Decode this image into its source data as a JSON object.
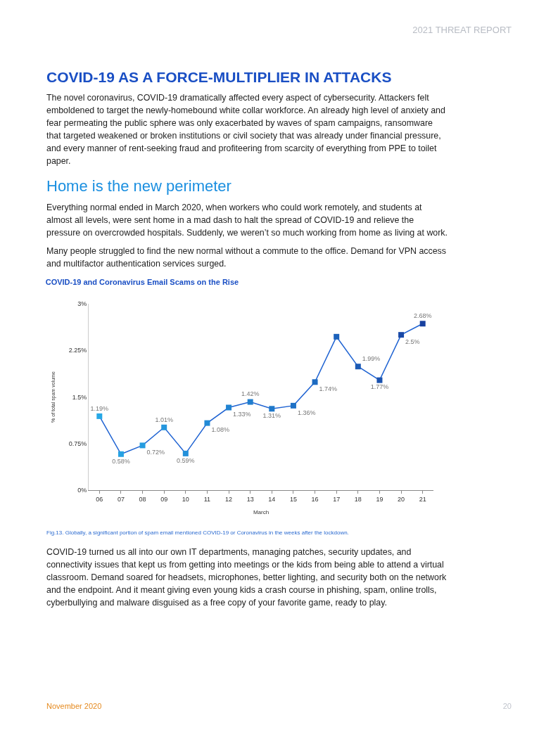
{
  "chart_data": {
    "type": "line",
    "title": "COVID-19 and Coronavirus Email Scams on the Rise",
    "xlabel": "March",
    "ylabel": "% of total spam volume",
    "categories": [
      "06",
      "07",
      "08",
      "09",
      "10",
      "11",
      "12",
      "13",
      "14",
      "15",
      "16",
      "17",
      "18",
      "19",
      "20",
      "21"
    ],
    "series": [
      {
        "color": "#1f63d2",
        "values": [
          1.19,
          0.58,
          0.72,
          1.01,
          0.59,
          1.08,
          1.33,
          1.42,
          1.31,
          1.36,
          1.74,
          2.47,
          1.99,
          1.77,
          2.5,
          2.68
        ],
        "colors": [
          "#27a8e6",
          "#26a2e3",
          "#259ce0",
          "#2496dd",
          "#2390da",
          "#228ad6",
          "#2184d2",
          "#207ece",
          "#1f78ca",
          "#1e71c6",
          "#1d6ac1",
          "#1c62bb",
          "#1b5ab5",
          "#1a52ae",
          "#1949a7",
          "#18409f"
        ],
        "value_labels": [
          "1.19%",
          "0.58%",
          "0.72%",
          "1.01%",
          "0.59%",
          "1.08%",
          "1.33%",
          "1.42%",
          "1.31%",
          "1.36%",
          "1.74%",
          null,
          "1.99%",
          "1.77%",
          "2.5%",
          "2.68%"
        ]
      }
    ],
    "ylim": [
      0,
      3
    ],
    "yticks": [
      {
        "value": 0,
        "label": "0%"
      },
      {
        "value": 0.75,
        "label": "0.75%"
      },
      {
        "value": 1.5,
        "label": "1.5%"
      },
      {
        "value": 2.25,
        "label": "2.25%"
      },
      {
        "value": 3,
        "label": "3%"
      }
    ],
    "grid": false,
    "marker": "square",
    "line_style": "solid",
    "annotations": [
      "2021 THREAT REPORT",
      "COVID-19 AS A FORCE-MULTIPLIER IN ATTACKS",
      "The novel coronavirus, COVID-19 dramatically affected every aspect of cybersecurity. Attackers felt emboldened to target the newly-homebound white collar workforce. An already high level of anxiety and fear permeating the public sphere was only exacerbated by waves of spam campaigns, ransomware that targeted weakened or broken institutions or civil society that was already under financial pressure, and every manner of rent-seeking fraud and profiteering from scarcity of everything from PPE to toilet paper.",
      "Home is the new perimeter",
      "Everything normal ended in March 2020, when workers who could work remotely, and students at almost all levels, were sent home in a mad dash to halt the spread of COVID-19 and relieve the pressure on overcrowded hospitals. Suddenly, we weren’t so much working from home as living at work.",
      "Many people struggled to find the new normal without a commute to the office. Demand for VPN access and multifactor authentication services surged.",
      "Fig.13. Globally, a significant portion of spam email mentioned COVID-19 or Coronavirus in the weeks after the lockdown.",
      "COVID-19 turned us all into our own IT departments, managing patches, security updates, and connectivity issues that kept us from getting into meetings or the kids from being able to attend a virtual classroom. Demand soared for headsets, microphones, better lighting, and security both on the network and the endpoint. And it meant giving even young kids a crash course in phishing, spam, online trolls, cyberbullying and malware disguised as a free copy of your favorite game, ready to play.",
      "November 2020",
      "20"
    ]
  }
}
